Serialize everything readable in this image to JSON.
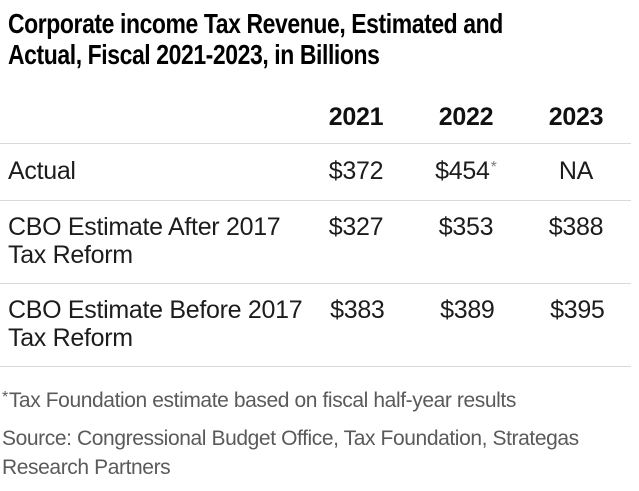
{
  "title": {
    "line1": "Corporate income Tax Revenue, Estimated and",
    "line2": "Actual, Fiscal 2021-2023, in Billions"
  },
  "table": {
    "year_headers": [
      "2021",
      "2022",
      "2023"
    ],
    "rows": [
      {
        "label_lines": [
          "Actual"
        ],
        "values": [
          "$372",
          "$454",
          "NA"
        ],
        "note_marker": "*"
      },
      {
        "label_lines": [
          "CBO Estimate After 2017",
          "Tax Reform"
        ],
        "values": [
          "$327",
          "$353",
          "$388"
        ]
      },
      {
        "label_lines": [
          "CBO Estimate Before 2017",
          "Tax Reform"
        ],
        "values": [
          "$383",
          "$389",
          "$395"
        ]
      }
    ]
  },
  "footnote": {
    "marker": "*",
    "text": "Tax Foundation estimate based on fiscal half-year results"
  },
  "source_lines": [
    "Source: Congressional Budget Office, Tax Foundation, Strategas",
    "Research Partners"
  ],
  "colors": {
    "title_text": "#000000",
    "body_text": "#1c1c1c",
    "muted_text": "#5a5a5a",
    "divider": "#d9d9d9",
    "background": "#ffffff"
  },
  "chart_data": {
    "type": "table",
    "title": "Corporate income Tax Revenue, Estimated and Actual, Fiscal 2021-2023, in Billions",
    "units": "USD billions",
    "categories": [
      "2021",
      "2022",
      "2023"
    ],
    "series": [
      {
        "name": "Actual",
        "values": [
          372,
          454,
          null
        ],
        "display": [
          "$372",
          "$454*",
          "NA"
        ]
      },
      {
        "name": "CBO Estimate After 2017 Tax Reform",
        "values": [
          327,
          353,
          388
        ],
        "display": [
          "$327",
          "$353",
          "$388"
        ]
      },
      {
        "name": "CBO Estimate Before 2017 Tax Reform",
        "values": [
          383,
          389,
          395
        ],
        "display": [
          "$383",
          "$389",
          "$395"
        ]
      }
    ],
    "footnote": "*Tax Foundation estimate based on fiscal half-year results",
    "source": "Source: Congressional Budget Office, Tax Foundation, Strategas Research Partners",
    "legend_position": "none",
    "grid": "row-dividers-only"
  }
}
